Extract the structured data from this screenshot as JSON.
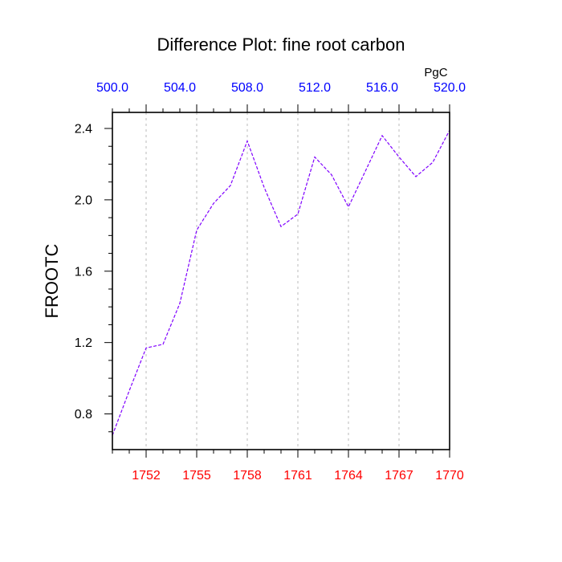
{
  "chart_data": {
    "type": "line",
    "title": "Difference Plot: fine root carbon",
    "ylabel": "FROOTC",
    "top_axis_units": "PgC",
    "x": [
      1750,
      1751,
      1752,
      1753,
      1754,
      1755,
      1756,
      1757,
      1758,
      1759,
      1760,
      1761,
      1762,
      1763,
      1764,
      1765,
      1766,
      1767,
      1768,
      1769,
      1770
    ],
    "series": [
      {
        "values": [
          0.68,
          0.93,
          1.17,
          1.19,
          1.42,
          1.83,
          1.98,
          2.08,
          2.33,
          2.07,
          1.85,
          1.92,
          2.24,
          2.14,
          1.96,
          2.16,
          2.36,
          2.24,
          2.13,
          2.21,
          2.39
        ],
        "color": "#7f00ff",
        "line_style": "dashed"
      }
    ],
    "xlim": [
      1750,
      1770
    ],
    "ylim": [
      0.6,
      2.49
    ],
    "bottom_ticks": [
      1752,
      1755,
      1758,
      1761,
      1764,
      1767,
      1770
    ],
    "bottom_tick_labels": [
      "1752",
      "1755",
      "1758",
      "1761",
      "1764",
      "1767",
      "1770"
    ],
    "bottom_tick_color": "#ff0000",
    "top_ticks": [
      500.0,
      504.0,
      508.0,
      512.0,
      516.0,
      520.0
    ],
    "top_tick_labels": [
      "500.0",
      "504.0",
      "508.0",
      "512.0",
      "516.0",
      "520.0"
    ],
    "top_xlim": [
      500.0,
      520.0
    ],
    "top_tick_color": "#0000ff",
    "y_ticks": [
      0.8,
      1.2,
      1.6,
      2.0,
      2.4
    ],
    "y_tick_labels": [
      "0.8",
      "1.2",
      "1.6",
      "2.0",
      "2.4"
    ],
    "vertical_grid": true,
    "grid_color": "#bbbbbb"
  }
}
